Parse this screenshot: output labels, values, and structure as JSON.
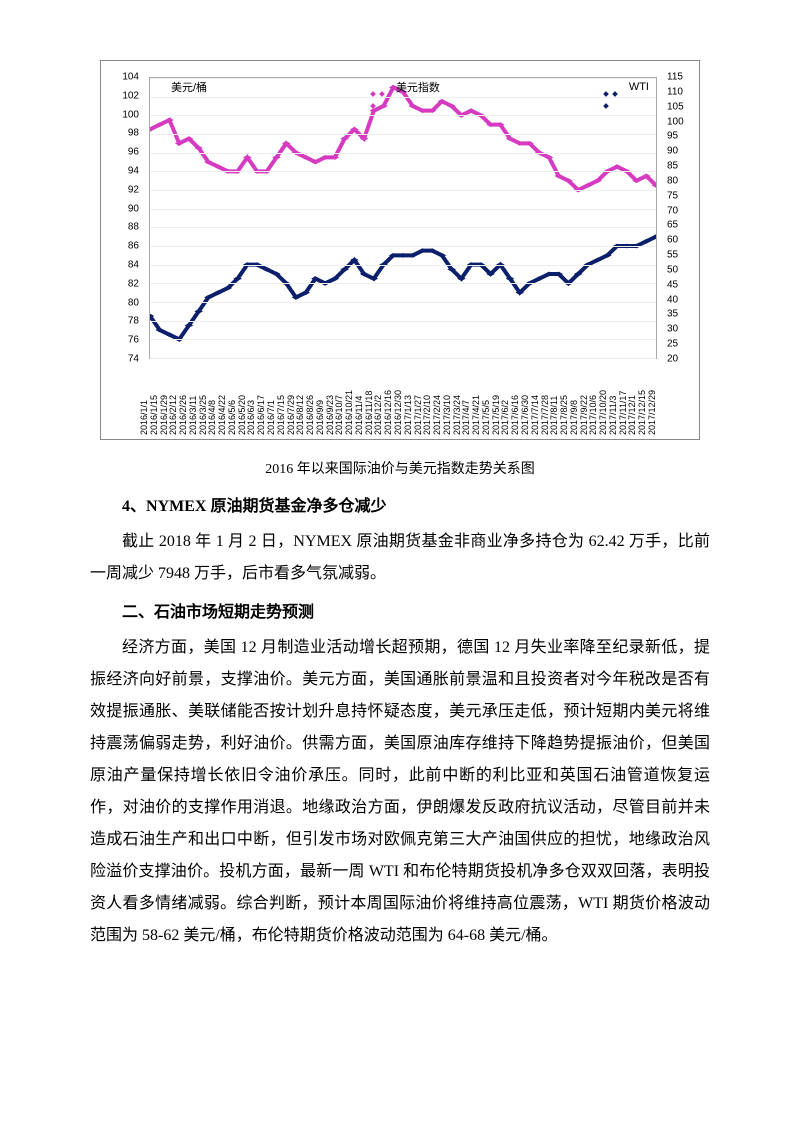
{
  "chart": {
    "type": "line-dual-axis",
    "y_axis_label": "美元/桶",
    "legend": [
      {
        "label": "美元指数",
        "color": "#d63ac1",
        "marker": "diamond"
      },
      {
        "label": "WTI",
        "color": "#0b1f6b",
        "marker": "diamond"
      }
    ],
    "axis_left": {
      "min": 74,
      "max": 104,
      "step": 2,
      "ticks": [
        74,
        76,
        78,
        80,
        82,
        84,
        86,
        88,
        90,
        92,
        94,
        96,
        98,
        100,
        102,
        104
      ]
    },
    "axis_right": {
      "min": 20,
      "max": 115,
      "step": 5,
      "ticks": [
        20,
        25,
        30,
        35,
        40,
        45,
        50,
        55,
        60,
        65,
        70,
        75,
        80,
        85,
        90,
        95,
        100,
        105,
        110,
        115
      ]
    },
    "x_labels": [
      "2016/1/1",
      "2016/1/15",
      "2016/1/29",
      "2016/2/12",
      "2016/2/26",
      "2016/3/11",
      "2016/3/25",
      "2016/4/8",
      "2016/4/22",
      "2016/5/6",
      "2016/5/20",
      "2016/6/3",
      "2016/6/17",
      "2016/7/1",
      "2016/7/15",
      "2016/7/29",
      "2016/8/12",
      "2016/8/26",
      "2016/9/9",
      "2016/9/23",
      "2016/10/7",
      "2016/10/21",
      "2016/11/4",
      "2016/11/18",
      "2016/12/2",
      "2016/12/16",
      "2016/12/30",
      "2017/1/13",
      "2017/1/27",
      "2017/2/10",
      "2017/2/24",
      "2017/3/10",
      "2017/3/24",
      "2017/4/7",
      "2017/4/21",
      "2017/5/5",
      "2017/5/19",
      "2017/6/2",
      "2017/6/16",
      "2017/6/30",
      "2017/7/14",
      "2017/7/28",
      "2017/8/11",
      "2017/8/25",
      "2017/9/8",
      "2017/9/22",
      "2017/10/6",
      "2017/10/20",
      "2017/11/3",
      "2017/11/17",
      "2017/12/1",
      "2017/12/15",
      "2017/12/29"
    ],
    "series_usd_index": {
      "color": "#d63ac1",
      "values": [
        98.5,
        99.0,
        99.5,
        97.0,
        97.5,
        96.5,
        95.0,
        94.5,
        94.0,
        94.0,
        95.5,
        94.0,
        94.0,
        95.5,
        97.0,
        96.0,
        95.5,
        95.0,
        95.5,
        95.5,
        97.5,
        98.5,
        97.5,
        100.5,
        101.0,
        103.0,
        102.5,
        101.0,
        100.5,
        100.5,
        101.5,
        101.0,
        100.0,
        100.5,
        100.0,
        99.0,
        99.0,
        97.5,
        97.0,
        97.0,
        96.0,
        95.5,
        93.5,
        93.0,
        92.0,
        92.5,
        93.0,
        94.0,
        94.5,
        94.0,
        93.0,
        93.5,
        92.5
      ]
    },
    "series_wti": {
      "color": "#0b1f6b",
      "values": [
        78.5,
        77.0,
        76.5,
        76.0,
        77.5,
        79.0,
        80.5,
        81.0,
        81.5,
        82.5,
        84.0,
        84.0,
        83.5,
        83.0,
        82.0,
        80.5,
        81.0,
        82.5,
        82.0,
        82.5,
        83.5,
        84.5,
        83.0,
        82.5,
        84.0,
        85.0,
        85.0,
        85.0,
        85.5,
        85.5,
        85.0,
        83.5,
        82.5,
        84.0,
        84.0,
        83.0,
        84.0,
        82.5,
        81.0,
        82.0,
        82.5,
        83.0,
        83.0,
        82.0,
        83.0,
        84.0,
        84.5,
        85.0,
        86.0,
        86.0,
        86.0,
        86.5,
        87.0
      ]
    },
    "grid_color": "#eeeeee",
    "border_color": "#888888",
    "tick_fontsize": 10,
    "x_tick_fontsize": 9
  },
  "caption": "2016 年以来国际油价与美元指数走势关系图",
  "heading1_prefix": "4、",
  "heading1_latin": "NYMEX",
  "heading1_rest": " 原油期货基金净多仓减少",
  "para1": "截止 2018 年 1 月 2 日，NYMEX 原油期货基金非商业净多持仓为 62.42 万手，比前一周减少 7948 万手，后市看多气氛减弱。",
  "heading2": "二、石油市场短期走势预测",
  "para2": "经济方面，美国 12 月制造业活动增长超预期，德国 12 月失业率降至纪录新低，提振经济向好前景，支撑油价。美元方面，美国通胀前景温和且投资者对今年税改是否有效提振通胀、美联储能否按计划升息持怀疑态度，美元承压走低，预计短期内美元将维持震荡偏弱走势，利好油价。供需方面，美国原油库存维持下降趋势提振油价，但美国原油产量保持增长依旧令油价承压。同时，此前中断的利比亚和英国石油管道恢复运作，对油价的支撑作用消退。地缘政治方面，伊朗爆发反政府抗议活动，尽管目前并未造成石油生产和出口中断，但引发市场对欧佩克第三大产油国供应的担忧，地缘政治风险溢价支撑油价。投机方面，最新一周 WTI 和布伦特期货投机净多仓双双回落，表明投资人看多情绪减弱。综合判断，预计本周国际油价将维持高位震荡，WTI 期货价格波动范围为 58-62 美元/桶，布伦特期货价格波动范围为 64-68 美元/桶。"
}
